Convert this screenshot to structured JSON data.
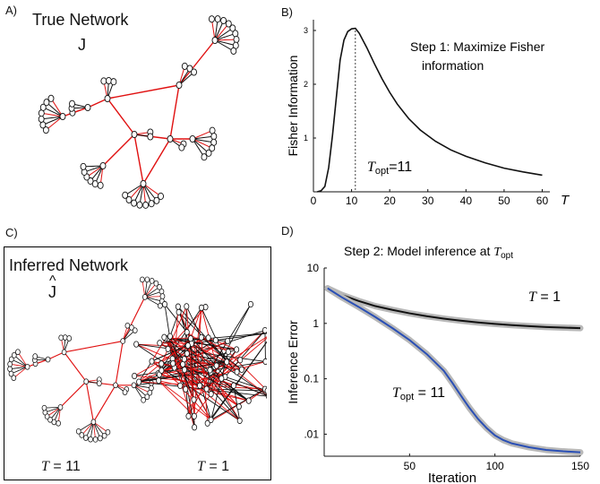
{
  "panel_a": {
    "letter": "A)",
    "title": "True Network",
    "symbol": "J"
  },
  "panel_b": {
    "letter": "B)",
    "annotation_line1": "Step 1: Maximize Fisher",
    "annotation_line2": "information",
    "topt_label": "T",
    "topt_sub": "opt",
    "topt_value": "=11"
  },
  "panel_c": {
    "letter": "C)",
    "title": "Inferred Network",
    "symbol": "J",
    "hat": "^",
    "label_left_T": "T",
    "label_left_val": " = 11",
    "label_right_T": "T",
    "label_right_val": " = 1"
  },
  "panel_d": {
    "letter": "D)",
    "title_prefix": "Step 2: Model inference at ",
    "title_T": "T",
    "title_sub": "opt",
    "curve1_T": "T",
    "curve1_val": " = 1",
    "curve2_T": "T",
    "curve2_sub": "opt",
    "curve2_val": " = 11"
  },
  "colors": {
    "black_edge": "#111111",
    "red_edge": "#e01010",
    "blue_curve": "#2a4fb5",
    "band": "#b8b8b8"
  },
  "chart_data": [
    {
      "type": "line",
      "title": "",
      "xlabel": "T",
      "ylabel": "Fisher Information",
      "xlim": [
        0,
        62
      ],
      "ylim": [
        0,
        3.2
      ],
      "xticks": [
        "0",
        "10",
        "20",
        "30",
        "40",
        "50",
        "60"
      ],
      "xtick_values": [
        0,
        10,
        20,
        30,
        40,
        50,
        60
      ],
      "yticks": [
        "1",
        "2",
        "3"
      ],
      "ytick_values": [
        1,
        2,
        3
      ],
      "series": [
        {
          "x": [
            1,
            2,
            3,
            4,
            5,
            6,
            7,
            8,
            9,
            10,
            11,
            12,
            14,
            16,
            18,
            20,
            22,
            25,
            28,
            32,
            36,
            40,
            45,
            50,
            55,
            60
          ],
          "y": [
            0.0,
            0.02,
            0.1,
            0.45,
            1.05,
            1.75,
            2.45,
            2.82,
            2.98,
            3.03,
            3.04,
            2.95,
            2.68,
            2.38,
            2.1,
            1.85,
            1.63,
            1.36,
            1.15,
            0.94,
            0.78,
            0.66,
            0.54,
            0.44,
            0.37,
            0.31
          ]
        }
      ],
      "vline_x": 11
    },
    {
      "type": "line",
      "title": "Step 2: Model inference at Topt",
      "xlabel": "Iteration",
      "ylabel": "Inference Error",
      "xlim": [
        0,
        150
      ],
      "ylim": [
        0.004,
        10
      ],
      "yscale": "log",
      "xticks": [
        "50",
        "100",
        "150"
      ],
      "xtick_values": [
        50,
        100,
        150
      ],
      "yticks": [
        "10",
        "1",
        "0.1",
        ".01"
      ],
      "ytick_values": [
        10,
        1,
        0.1,
        0.01
      ],
      "series": [
        {
          "name": "T = 1",
          "x": [
            2,
            10,
            20,
            30,
            40,
            50,
            60,
            70,
            80,
            90,
            100,
            110,
            120,
            130,
            140,
            150
          ],
          "y": [
            4.3,
            3.3,
            2.55,
            2.05,
            1.75,
            1.52,
            1.35,
            1.22,
            1.12,
            1.04,
            0.98,
            0.93,
            0.89,
            0.86,
            0.84,
            0.82
          ]
        },
        {
          "name": "Topt = 11",
          "x": [
            2,
            10,
            20,
            30,
            40,
            50,
            60,
            70,
            75,
            80,
            85,
            90,
            95,
            100,
            105,
            110,
            120,
            130,
            140,
            150
          ],
          "y": [
            4.3,
            3.0,
            2.0,
            1.3,
            0.82,
            0.5,
            0.28,
            0.14,
            0.085,
            0.05,
            0.03,
            0.019,
            0.013,
            0.0095,
            0.0078,
            0.0068,
            0.0058,
            0.0052,
            0.0049,
            0.0047
          ]
        }
      ]
    }
  ]
}
